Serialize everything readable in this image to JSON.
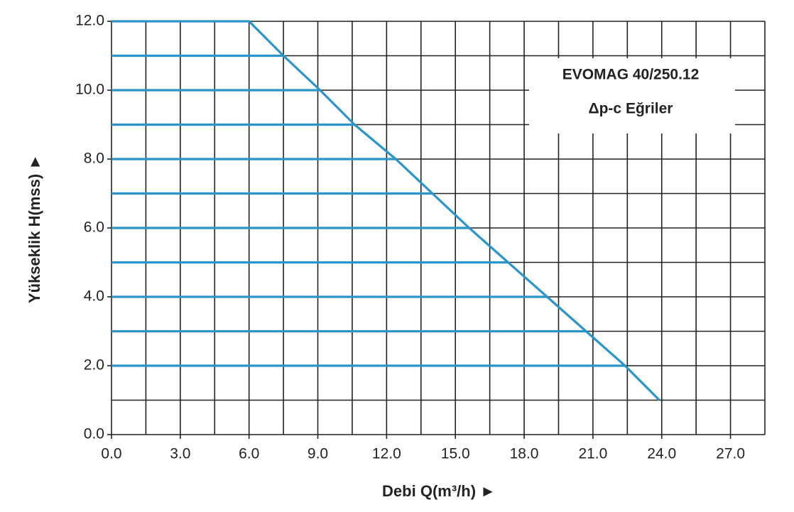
{
  "chart_data": {
    "type": "line",
    "xlabel": "Debi Q(m³/h) ►",
    "ylabel": "Yükseklik H(mss) ►",
    "annotations": [
      "EVOMAG 40/250.12",
      "Δp-c Eğriler"
    ],
    "xlim": [
      0,
      28.5
    ],
    "ylim": [
      0,
      12
    ],
    "xticks": [
      {
        "value": 0,
        "label": "0.0"
      },
      {
        "value": 3,
        "label": "3.0"
      },
      {
        "value": 6,
        "label": "6.0"
      },
      {
        "value": 9,
        "label": "9.0"
      },
      {
        "value": 12,
        "label": "12.0"
      },
      {
        "value": 15,
        "label": "15.0"
      },
      {
        "value": 18,
        "label": "18.0"
      },
      {
        "value": 21,
        "label": "21.0"
      },
      {
        "value": 24,
        "label": "24.0"
      },
      {
        "value": 27,
        "label": "27.0"
      }
    ],
    "yticks": [
      {
        "value": 0,
        "label": "0.0"
      },
      {
        "value": 2,
        "label": "2.0"
      },
      {
        "value": 4,
        "label": "4.0"
      },
      {
        "value": 6,
        "label": "6.0"
      },
      {
        "value": 8,
        "label": "8.0"
      },
      {
        "value": 10,
        "label": "10.0"
      },
      {
        "value": 12,
        "label": "12.0"
      }
    ],
    "xgrid": [
      0,
      1.5,
      3,
      4.5,
      6,
      7.5,
      9,
      10.5,
      12,
      13.5,
      15,
      16.5,
      18,
      19.5,
      21,
      22.5,
      24,
      25.5,
      27,
      28.5
    ],
    "ygrid": [
      0,
      1,
      2,
      3,
      4,
      5,
      6,
      7,
      8,
      9,
      10,
      11,
      12
    ],
    "grid": true,
    "series": [
      {
        "color": "#2a95c9",
        "x": [
          0,
          6,
          7.5,
          9.1,
          10.6,
          12.4,
          14.0,
          15.6,
          17.3,
          19.0,
          20.7,
          22.4,
          23.9
        ],
        "values": [
          12,
          12,
          11,
          10,
          9,
          8,
          7,
          6,
          5,
          4,
          3,
          2,
          1
        ]
      },
      {
        "color": "#2a95c9",
        "x": [
          0,
          7.5
        ],
        "values": [
          11,
          11
        ]
      },
      {
        "color": "#2a95c9",
        "x": [
          0,
          9.1
        ],
        "values": [
          10,
          10
        ]
      },
      {
        "color": "#2a95c9",
        "x": [
          0,
          10.6
        ],
        "values": [
          9,
          9
        ]
      },
      {
        "color": "#2a95c9",
        "x": [
          0,
          12.4
        ],
        "values": [
          8,
          8
        ]
      },
      {
        "color": "#2a95c9",
        "x": [
          0,
          14.0
        ],
        "values": [
          7,
          7
        ]
      },
      {
        "color": "#2a95c9",
        "x": [
          0,
          15.6
        ],
        "values": [
          6,
          6
        ]
      },
      {
        "color": "#2a95c9",
        "x": [
          0,
          17.3
        ],
        "values": [
          5,
          5
        ]
      },
      {
        "color": "#2a95c9",
        "x": [
          0,
          19.0
        ],
        "values": [
          4,
          4
        ]
      },
      {
        "color": "#2a95c9",
        "x": [
          0,
          20.7
        ],
        "values": [
          3,
          3
        ]
      },
      {
        "color": "#2a95c9",
        "x": [
          0,
          22.4
        ],
        "values": [
          2,
          2
        ]
      }
    ]
  }
}
